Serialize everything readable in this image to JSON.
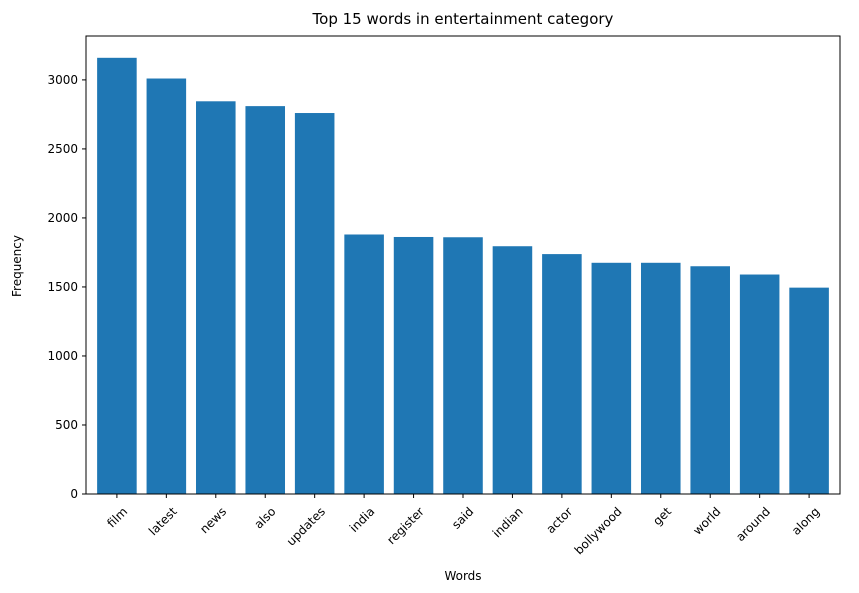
{
  "chart_data": {
    "type": "bar",
    "title": "Top 15 words in entertainment category",
    "xlabel": "Words",
    "ylabel": "Frequency",
    "categories": [
      "film",
      "latest",
      "news",
      "also",
      "updates",
      "india",
      "register",
      "said",
      "indian",
      "actor",
      "bollywood",
      "get",
      "world",
      "around",
      "along"
    ],
    "values": [
      3160,
      3010,
      2845,
      2810,
      2760,
      1880,
      1862,
      1860,
      1795,
      1738,
      1675,
      1675,
      1650,
      1590,
      1495
    ],
    "yticks": [
      0,
      500,
      1000,
      1500,
      2000,
      2500,
      3000
    ],
    "ylim": [
      0,
      3318
    ],
    "grid": false,
    "bar_color": "#1f77b4"
  }
}
